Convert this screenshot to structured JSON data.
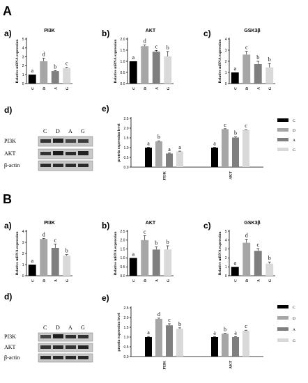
{
  "colors": {
    "C": "#000000",
    "D": "#a6a6a6",
    "A": "#7f7f7f",
    "G": "#d9d9d9"
  },
  "sections": [
    {
      "label": "A",
      "blot": {
        "panel": "d)",
        "lanes": [
          "C",
          "D",
          "A",
          "G"
        ],
        "proteins": [
          "PI3K",
          "AKT",
          "β-actin"
        ]
      },
      "legend": [
        "C",
        "D",
        "A",
        "G"
      ]
    },
    {
      "label": "B",
      "blot": {
        "panel": "d)",
        "lanes": [
          "C",
          "D",
          "A",
          "G"
        ],
        "proteins": [
          "PI3K",
          "AKT",
          "β-actin"
        ]
      },
      "legend": [
        "C",
        "D",
        "A",
        "G"
      ]
    }
  ],
  "chart_data": [
    {
      "section": "A",
      "panel": "a)",
      "type": "bar",
      "title": "PI3K",
      "ylabel": "Relative mRNA expression",
      "categories": [
        "C",
        "D",
        "A",
        "G"
      ],
      "values": [
        1.0,
        2.5,
        1.4,
        1.75
      ],
      "errors": [
        0,
        0.35,
        0.05,
        0.08
      ],
      "letters": [
        "a",
        "d",
        "b",
        "c"
      ],
      "ylim": [
        0,
        5
      ],
      "yticks": [
        0,
        1,
        2,
        3,
        4,
        5
      ]
    },
    {
      "section": "A",
      "panel": "b)",
      "type": "bar",
      "title": "AKT",
      "ylabel": "Relative mRNA expression",
      "categories": [
        "C",
        "D",
        "A",
        "G"
      ],
      "values": [
        1.0,
        1.68,
        1.43,
        1.22
      ],
      "errors": [
        0,
        0.05,
        0.06,
        0.22
      ],
      "letters": [
        "a",
        "d",
        "c",
        "b"
      ],
      "ylim": [
        0,
        2.0
      ],
      "yticks": [
        0,
        0.5,
        1.0,
        1.5,
        2.0
      ]
    },
    {
      "section": "A",
      "panel": "c)",
      "type": "bar",
      "title": "GSK3β",
      "ylabel": "Relative mRNA expression",
      "categories": [
        "C",
        "D",
        "A",
        "G"
      ],
      "values": [
        1.0,
        2.6,
        1.75,
        1.45
      ],
      "errors": [
        0,
        0.3,
        0.25,
        0.35
      ],
      "letters": [
        "a",
        "c",
        "b",
        "b"
      ],
      "ylim": [
        0,
        4
      ],
      "yticks": [
        0,
        1,
        2,
        3,
        4
      ]
    },
    {
      "section": "A",
      "panel": "e)",
      "type": "bar",
      "title": "",
      "ylabel": "protein expression level",
      "categories": [
        "PI3K",
        "AKT"
      ],
      "ylim": [
        0,
        2.5
      ],
      "yticks": [
        0.0,
        0.5,
        1.0,
        1.5,
        2.0,
        2.5
      ],
      "series": [
        {
          "name": "C",
          "values": [
            1.0,
            1.0
          ],
          "errors": [
            0.02,
            0.02
          ],
          "letters": [
            "a",
            "a"
          ]
        },
        {
          "name": "D",
          "values": [
            1.32,
            1.95
          ],
          "errors": [
            0.03,
            0.02
          ],
          "letters": [
            "b",
            "c"
          ]
        },
        {
          "name": "A",
          "values": [
            0.7,
            1.52
          ],
          "errors": [
            0.02,
            0.03
          ],
          "letters": [
            "a",
            "b"
          ]
        },
        {
          "name": "G",
          "values": [
            0.8,
            1.9
          ],
          "errors": [
            0.02,
            0.02
          ],
          "letters": [
            "a",
            "c"
          ]
        }
      ]
    },
    {
      "section": "B",
      "panel": "a)",
      "type": "bar",
      "title": "PI3K",
      "ylabel": "Relative mRNA expression",
      "categories": [
        "C",
        "D",
        "A",
        "G"
      ],
      "values": [
        1.0,
        3.3,
        2.5,
        1.8
      ],
      "errors": [
        0,
        0.05,
        0.35,
        0.1
      ],
      "letters": [
        "a",
        "d",
        "c",
        "b"
      ],
      "ylim": [
        0,
        4
      ],
      "yticks": [
        0,
        1,
        2,
        3,
        4
      ]
    },
    {
      "section": "B",
      "panel": "b)",
      "type": "bar",
      "title": "AKT",
      "ylabel": "Relative mRNA expression",
      "categories": [
        "C",
        "D",
        "A",
        "G"
      ],
      "values": [
        1.0,
        2.0,
        1.47,
        1.48
      ],
      "errors": [
        0,
        0.25,
        0.15,
        0.2
      ],
      "letters": [
        "a",
        "c",
        "b",
        "b"
      ],
      "ylim": [
        0,
        2.5
      ],
      "yticks": [
        0,
        0.5,
        1.0,
        1.5,
        2.0,
        2.5
      ]
    },
    {
      "section": "B",
      "panel": "c)",
      "type": "bar",
      "title": "GSK3β",
      "ylabel": "Relative mRNA expression",
      "categories": [
        "C",
        "D",
        "A",
        "G"
      ],
      "values": [
        1.0,
        3.7,
        2.8,
        1.35
      ],
      "errors": [
        0,
        0.4,
        0.25,
        0.2
      ],
      "letters": [
        "a",
        "d",
        "c",
        "b"
      ],
      "ylim": [
        0,
        5
      ],
      "yticks": [
        0,
        1,
        2,
        3,
        4,
        5
      ]
    },
    {
      "section": "B",
      "panel": "e)",
      "type": "bar",
      "title": "",
      "ylabel": "protein expression level",
      "categories": [
        "PI3K",
        "AKT"
      ],
      "ylim": [
        0,
        2.5
      ],
      "yticks": [
        0.0,
        0.5,
        1.0,
        1.5,
        2.0,
        2.5
      ],
      "series": [
        {
          "name": "C",
          "values": [
            1.0,
            1.0
          ],
          "errors": [
            0.03,
            0.02
          ],
          "letters": [
            "a",
            "a"
          ]
        },
        {
          "name": "D",
          "values": [
            1.93,
            1.17
          ],
          "errors": [
            0.04,
            0.02
          ],
          "letters": [
            "d",
            "b"
          ]
        },
        {
          "name": "A",
          "values": [
            1.6,
            1.0
          ],
          "errors": [
            0.08,
            0.02
          ],
          "letters": [
            "c",
            "a"
          ]
        },
        {
          "name": "G",
          "values": [
            1.43,
            1.33
          ],
          "errors": [
            0.04,
            0.02
          ],
          "letters": [
            "b",
            "c"
          ]
        }
      ]
    }
  ]
}
